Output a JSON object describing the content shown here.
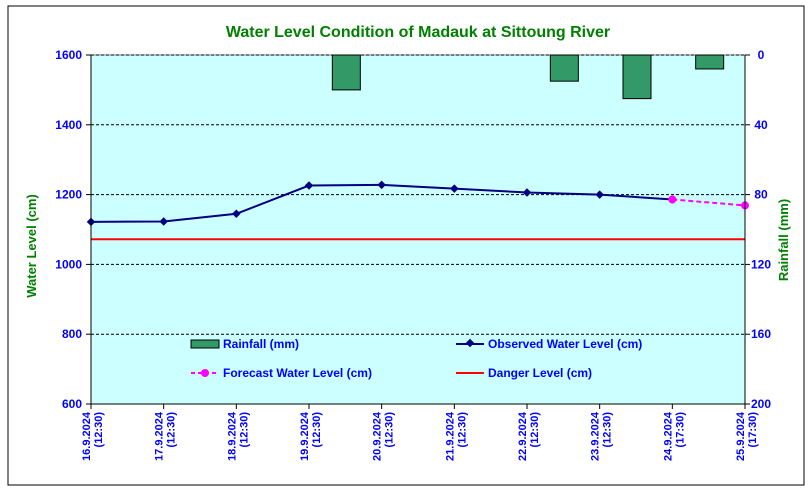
{
  "chart_data": {
    "type": "bar+line",
    "title": "Water Level Condition of Madauk at Sittoung River",
    "ylabel_left": "Water Level (cm)",
    "ylabel_right": "Rainfall (mm)",
    "ylim_left": [
      600,
      1600
    ],
    "ylim_right_inverted": [
      0,
      200
    ],
    "yticks_left": [
      "600",
      "800",
      "1000",
      "1200",
      "1400",
      "1600"
    ],
    "yticks_right": [
      "200",
      "160",
      "120",
      "80",
      "40",
      "0"
    ],
    "categories": [
      [
        "16.9.2024",
        "(12:30)"
      ],
      [
        "17.9.2024",
        "(12:30)"
      ],
      [
        "18.9.2024",
        "(12:30)"
      ],
      [
        "19.9.2024",
        "(12:30)"
      ],
      [
        "20.9.2024",
        "(12:30)"
      ],
      [
        "21.9.2024",
        "(12:30)"
      ],
      [
        "22.9.2024",
        "(12:30)"
      ],
      [
        "23.9.2024",
        "(12:30)"
      ],
      [
        "24.9.2024",
        "(17:30)"
      ],
      [
        "25.9.2024",
        "(17:30)"
      ]
    ],
    "grid": true,
    "legend": {
      "rainfall": "Rainfall (mm)",
      "observed": "Observed Water Level (cm)",
      "forecast": "Forecast Water Level (cm)",
      "danger": "Danger Level (cm)"
    },
    "rainfall_mm": [
      null,
      null,
      null,
      20,
      null,
      null,
      15,
      25,
      8,
      null
    ],
    "observed_cm": [
      1122,
      1123,
      1145,
      1226,
      1228,
      1217,
      1206,
      1200,
      1186,
      null
    ],
    "forecast_cm": [
      null,
      null,
      null,
      null,
      null,
      null,
      null,
      null,
      1186,
      1169
    ],
    "danger_cm": 1072,
    "colors": {
      "plot_bg": "#ccffff",
      "rainfall_bar": "#339966",
      "observed": "#000080",
      "forecast": "#ff00ff",
      "danger": "#ff0000",
      "title": "#008000",
      "axis_text": "#0000ff"
    }
  }
}
